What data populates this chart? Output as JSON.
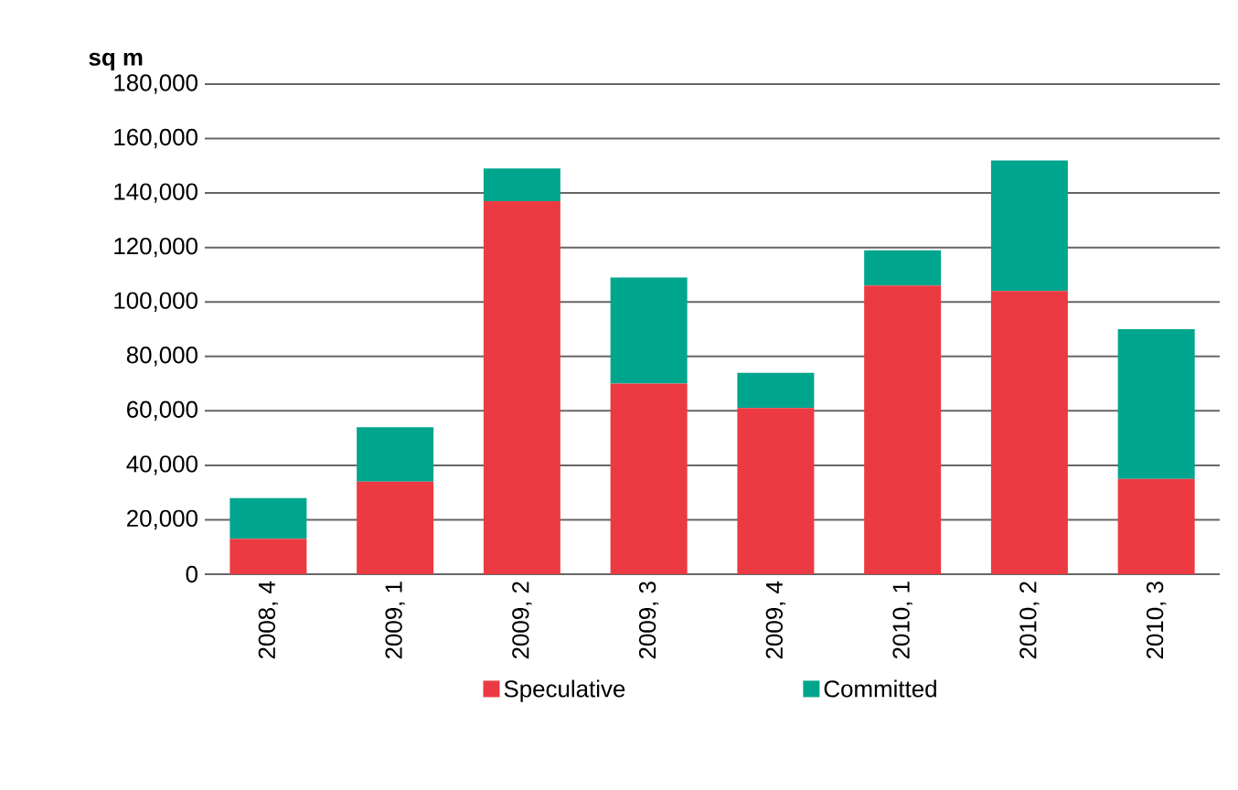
{
  "chart_data": {
    "type": "bar",
    "stacked": true,
    "ylabel": "sq m",
    "categories": [
      "2008, 4",
      "2009, 1",
      "2009, 2",
      "2009, 3",
      "2009, 4",
      "2010, 1",
      "2010, 2",
      "2010, 3"
    ],
    "series": [
      {
        "name": "Speculative",
        "color": "#ec3a43",
        "values": [
          13000,
          34000,
          137000,
          70000,
          61000,
          106000,
          104000,
          35000
        ]
      },
      {
        "name": "Committed",
        "color": "#00a58d",
        "values": [
          15000,
          20000,
          12000,
          39000,
          13000,
          13000,
          48000,
          55000
        ]
      }
    ],
    "ylim": [
      0,
      180000
    ],
    "yticks": [
      {
        "value": 0,
        "label": "0"
      },
      {
        "value": 20000,
        "label": "20,000"
      },
      {
        "value": 40000,
        "label": "40,000"
      },
      {
        "value": 60000,
        "label": "60,000"
      },
      {
        "value": 80000,
        "label": "80,000"
      },
      {
        "value": 100000,
        "label": "100,000"
      },
      {
        "value": 120000,
        "label": "120,000"
      },
      {
        "value": 140000,
        "label": "140,000"
      },
      {
        "value": 160000,
        "label": "160,000"
      },
      {
        "value": 180000,
        "label": "180,000"
      }
    ],
    "grid": "y",
    "legend": "bottom"
  }
}
